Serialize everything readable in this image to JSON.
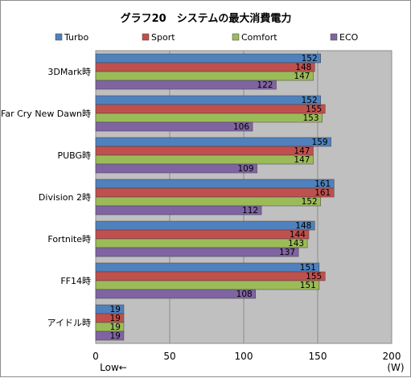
{
  "chart_data": {
    "type": "bar",
    "orientation": "horizontal",
    "title": "グラフ20　システムの最大消費電力",
    "categories": [
      "3DMark時",
      "Far Cry New Dawn時",
      "PUBG時",
      "Division 2時",
      "Fortnite時",
      "FF14時",
      "アイドル時"
    ],
    "series": [
      {
        "name": "Turbo",
        "color": "#4f81bd",
        "values": [
          152,
          152,
          159,
          161,
          148,
          151,
          19
        ]
      },
      {
        "name": "Sport",
        "color": "#c0504d",
        "values": [
          148,
          155,
          147,
          161,
          144,
          155,
          19
        ]
      },
      {
        "name": "Comfort",
        "color": "#9bbb59",
        "values": [
          147,
          153,
          147,
          152,
          143,
          151,
          19
        ]
      },
      {
        "name": "ECO",
        "color": "#8064a2",
        "values": [
          122,
          106,
          109,
          112,
          137,
          108,
          19
        ]
      }
    ],
    "xlim": [
      0,
      200
    ],
    "xticks": [
      0,
      50,
      100,
      150,
      200
    ],
    "unit_label": "(W)",
    "low_label": "Low←",
    "legend_position": "top",
    "plot_background": "#c0c0c0"
  }
}
